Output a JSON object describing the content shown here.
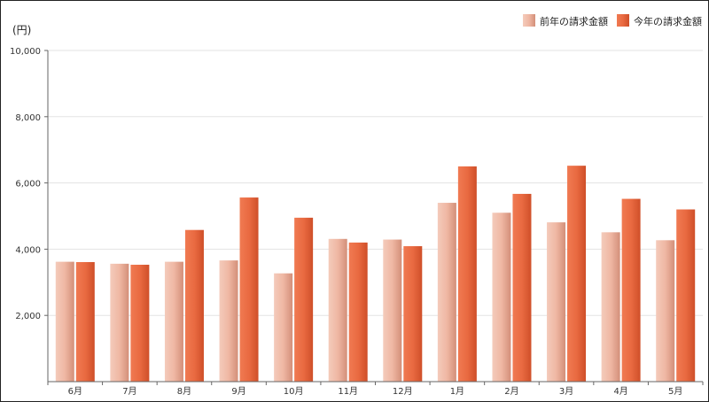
{
  "chart_data": {
    "type": "bar",
    "unit_label": "(円)",
    "categories": [
      "6月",
      "7月",
      "8月",
      "9月",
      "10月",
      "11月",
      "12月",
      "1月",
      "2月",
      "3月",
      "4月",
      "5月"
    ],
    "series": [
      {
        "name": "前年の請求金額",
        "values": [
          3620,
          3560,
          3620,
          3660,
          3270,
          4310,
          4290,
          5400,
          5100,
          4810,
          4510,
          4270
        ]
      },
      {
        "name": "今年の請求金額",
        "values": [
          3610,
          3530,
          4580,
          5560,
          4950,
          4200,
          4090,
          6500,
          5670,
          6520,
          5520,
          5200
        ]
      }
    ],
    "yticks": [
      "2,000",
      "4,000",
      "6,000",
      "8,000",
      "10,000"
    ],
    "ylim": [
      0,
      10000
    ],
    "grid": true,
    "legend": "top-right"
  },
  "colors": {
    "prev_light": "#f4cbbb",
    "prev_dark": "#d38f79",
    "curr_light": "#f07a52",
    "curr_dark": "#cf4f29",
    "grid": "#e3e3e3",
    "axis": "#666666"
  }
}
